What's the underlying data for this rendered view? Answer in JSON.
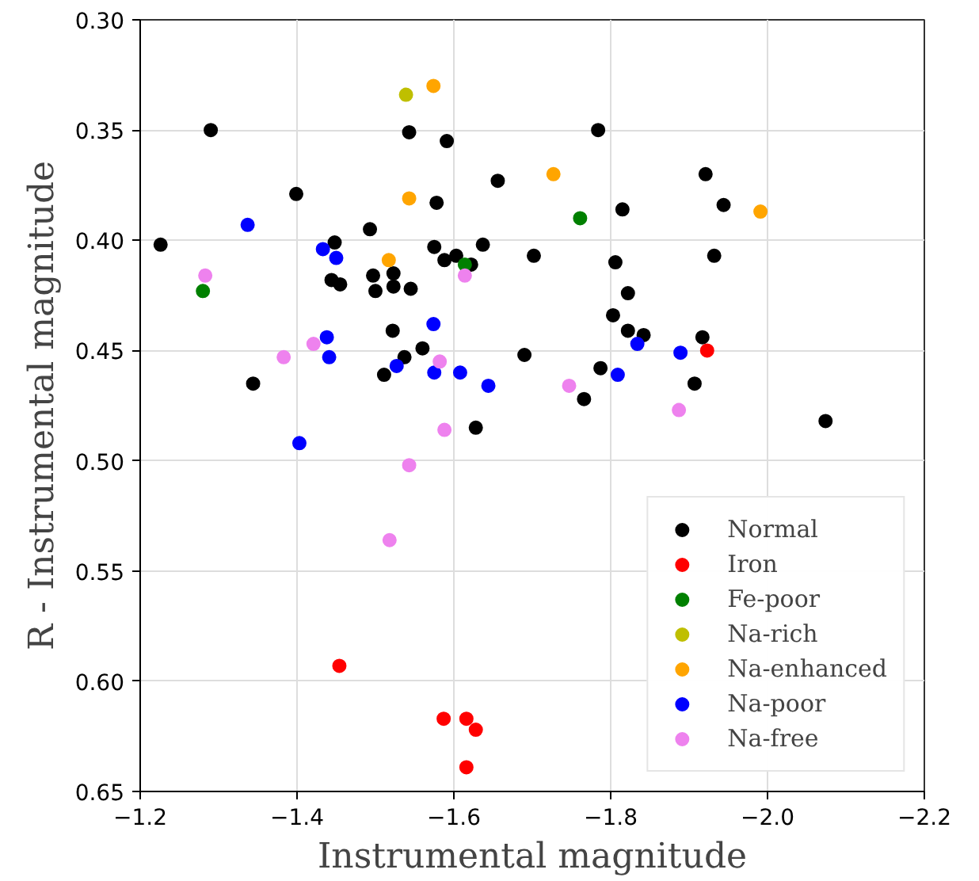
{
  "chart_data": {
    "type": "scatter",
    "xlabel": "Instrumental magnitude",
    "ylabel": "R - Instrumental magnitude",
    "xlim": [
      -1.2,
      -2.2
    ],
    "ylim": [
      0.65,
      0.3
    ],
    "xticks": [
      {
        "value": -1.2,
        "label": "−1.2"
      },
      {
        "value": -1.4,
        "label": "−1.4"
      },
      {
        "value": -1.6,
        "label": "−1.6"
      },
      {
        "value": -1.8,
        "label": "−1.8"
      },
      {
        "value": -2.0,
        "label": "−2.0"
      },
      {
        "value": -2.2,
        "label": "−2.2"
      }
    ],
    "yticks": [
      {
        "value": 0.3,
        "label": "0.30"
      },
      {
        "value": 0.35,
        "label": "0.35"
      },
      {
        "value": 0.4,
        "label": "0.40"
      },
      {
        "value": 0.45,
        "label": "0.45"
      },
      {
        "value": 0.5,
        "label": "0.50"
      },
      {
        "value": 0.55,
        "label": "0.55"
      },
      {
        "value": 0.6,
        "label": "0.60"
      },
      {
        "value": 0.65,
        "label": "0.65"
      }
    ],
    "grid": true,
    "legend": "bottom right",
    "marker": "circle",
    "series": [
      {
        "name": "Normal",
        "color": "#000000",
        "x": [
          -1.29,
          -1.543,
          -1.591,
          -1.656,
          -1.399,
          -1.578,
          -1.226,
          -1.493,
          -1.448,
          -1.575,
          -1.637,
          -1.702,
          -1.588,
          -1.603,
          -1.622,
          -1.444,
          -1.455,
          -1.497,
          -1.523,
          -1.5,
          -1.523,
          -1.545,
          -1.522,
          -1.56,
          -1.69,
          -1.537,
          -1.344,
          -1.511,
          -1.784,
          -1.921,
          -1.944,
          -1.815,
          -1.806,
          -1.932,
          -1.822,
          -1.803,
          -1.822,
          -1.842,
          -1.917,
          -1.787,
          -1.907,
          -1.766,
          -1.628,
          -2.074
        ],
        "values": [
          0.35,
          0.351,
          0.355,
          0.373,
          0.379,
          0.383,
          0.402,
          0.395,
          0.401,
          0.403,
          0.402,
          0.407,
          0.409,
          0.407,
          0.411,
          0.418,
          0.42,
          0.416,
          0.415,
          0.423,
          0.421,
          0.422,
          0.441,
          0.449,
          0.452,
          0.453,
          0.465,
          0.461,
          0.35,
          0.37,
          0.384,
          0.386,
          0.41,
          0.407,
          0.424,
          0.434,
          0.441,
          0.443,
          0.444,
          0.458,
          0.465,
          0.472,
          0.485,
          0.482
        ]
      },
      {
        "name": "Iron",
        "color": "#ff0000",
        "x": [
          -1.923,
          -1.454,
          -1.587,
          -1.616,
          -1.628,
          -1.616
        ],
        "values": [
          0.45,
          0.593,
          0.617,
          0.617,
          0.622,
          0.639
        ]
      },
      {
        "name": "Fe-poor",
        "color": "#008000",
        "x": [
          -1.614,
          -1.28,
          -1.761
        ],
        "values": [
          0.411,
          0.423,
          0.39
        ]
      },
      {
        "name": "Na-rich",
        "color": "#bfbf00",
        "x": [
          -1.539
        ],
        "values": [
          0.334
        ]
      },
      {
        "name": "Na-enhanced",
        "color": "#ffa500",
        "x": [
          -1.574,
          -1.543,
          -1.517,
          -1.727,
          -1.991
        ],
        "values": [
          0.33,
          0.381,
          0.409,
          0.37,
          0.387
        ]
      },
      {
        "name": "Na-poor",
        "color": "#0000ff",
        "x": [
          -1.337,
          -1.433,
          -1.45,
          -1.574,
          -1.438,
          -1.441,
          -1.527,
          -1.575,
          -1.608,
          -1.644,
          -1.834,
          -1.889,
          -1.809,
          -1.403
        ],
        "values": [
          0.393,
          0.404,
          0.408,
          0.438,
          0.444,
          0.453,
          0.457,
          0.46,
          0.46,
          0.466,
          0.447,
          0.451,
          0.461,
          0.492
        ]
      },
      {
        "name": "Na-free",
        "color": "#ee82ee",
        "x": [
          -1.614,
          -1.283,
          -1.421,
          -1.383,
          -1.582,
          -1.747,
          -1.887,
          -1.588,
          -1.543,
          -1.518
        ],
        "values": [
          0.416,
          0.416,
          0.447,
          0.453,
          0.455,
          0.466,
          0.477,
          0.486,
          0.502,
          0.536
        ]
      }
    ]
  }
}
